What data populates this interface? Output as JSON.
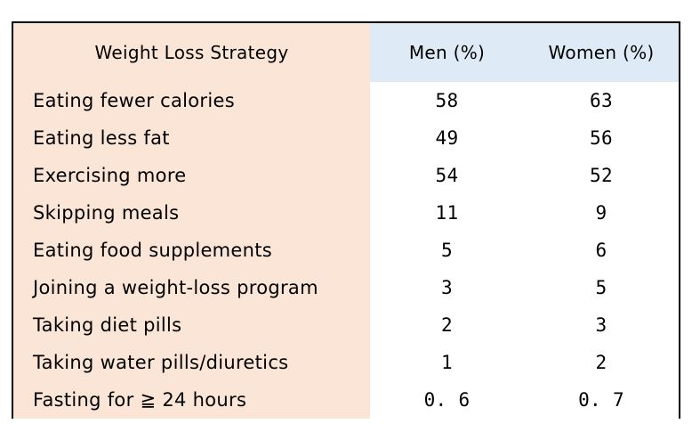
{
  "colors": {
    "strategy_bg": "#fbe5d6",
    "header_bg": "#deebf7",
    "line": "#111111"
  },
  "chart_data": {
    "type": "table",
    "columns": [
      "Weight Loss Strategy",
      "Men (%)",
      "Women (%)"
    ],
    "rows": [
      {
        "strategy": "Eating fewer calories",
        "men": "58",
        "women": "63"
      },
      {
        "strategy": "Eating less fat",
        "men": "49",
        "women": "56"
      },
      {
        "strategy": "Exercising more",
        "men": "54",
        "women": "52"
      },
      {
        "strategy": "Skipping meals",
        "men": "11",
        "women": "9"
      },
      {
        "strategy": "Eating  food supplements",
        "men": "5",
        "women": "6"
      },
      {
        "strategy": "Joining a weight-loss program",
        "men": "3",
        "women": "5"
      },
      {
        "strategy": "Taking diet pills",
        "men": "2",
        "women": "3"
      },
      {
        "strategy": "Taking water pills/diuretics",
        "men": "1",
        "women": "2"
      },
      {
        "strategy": "Fasting for ≧ 24 hours",
        "men": "0. 6",
        "women": "0. 7"
      }
    ]
  }
}
